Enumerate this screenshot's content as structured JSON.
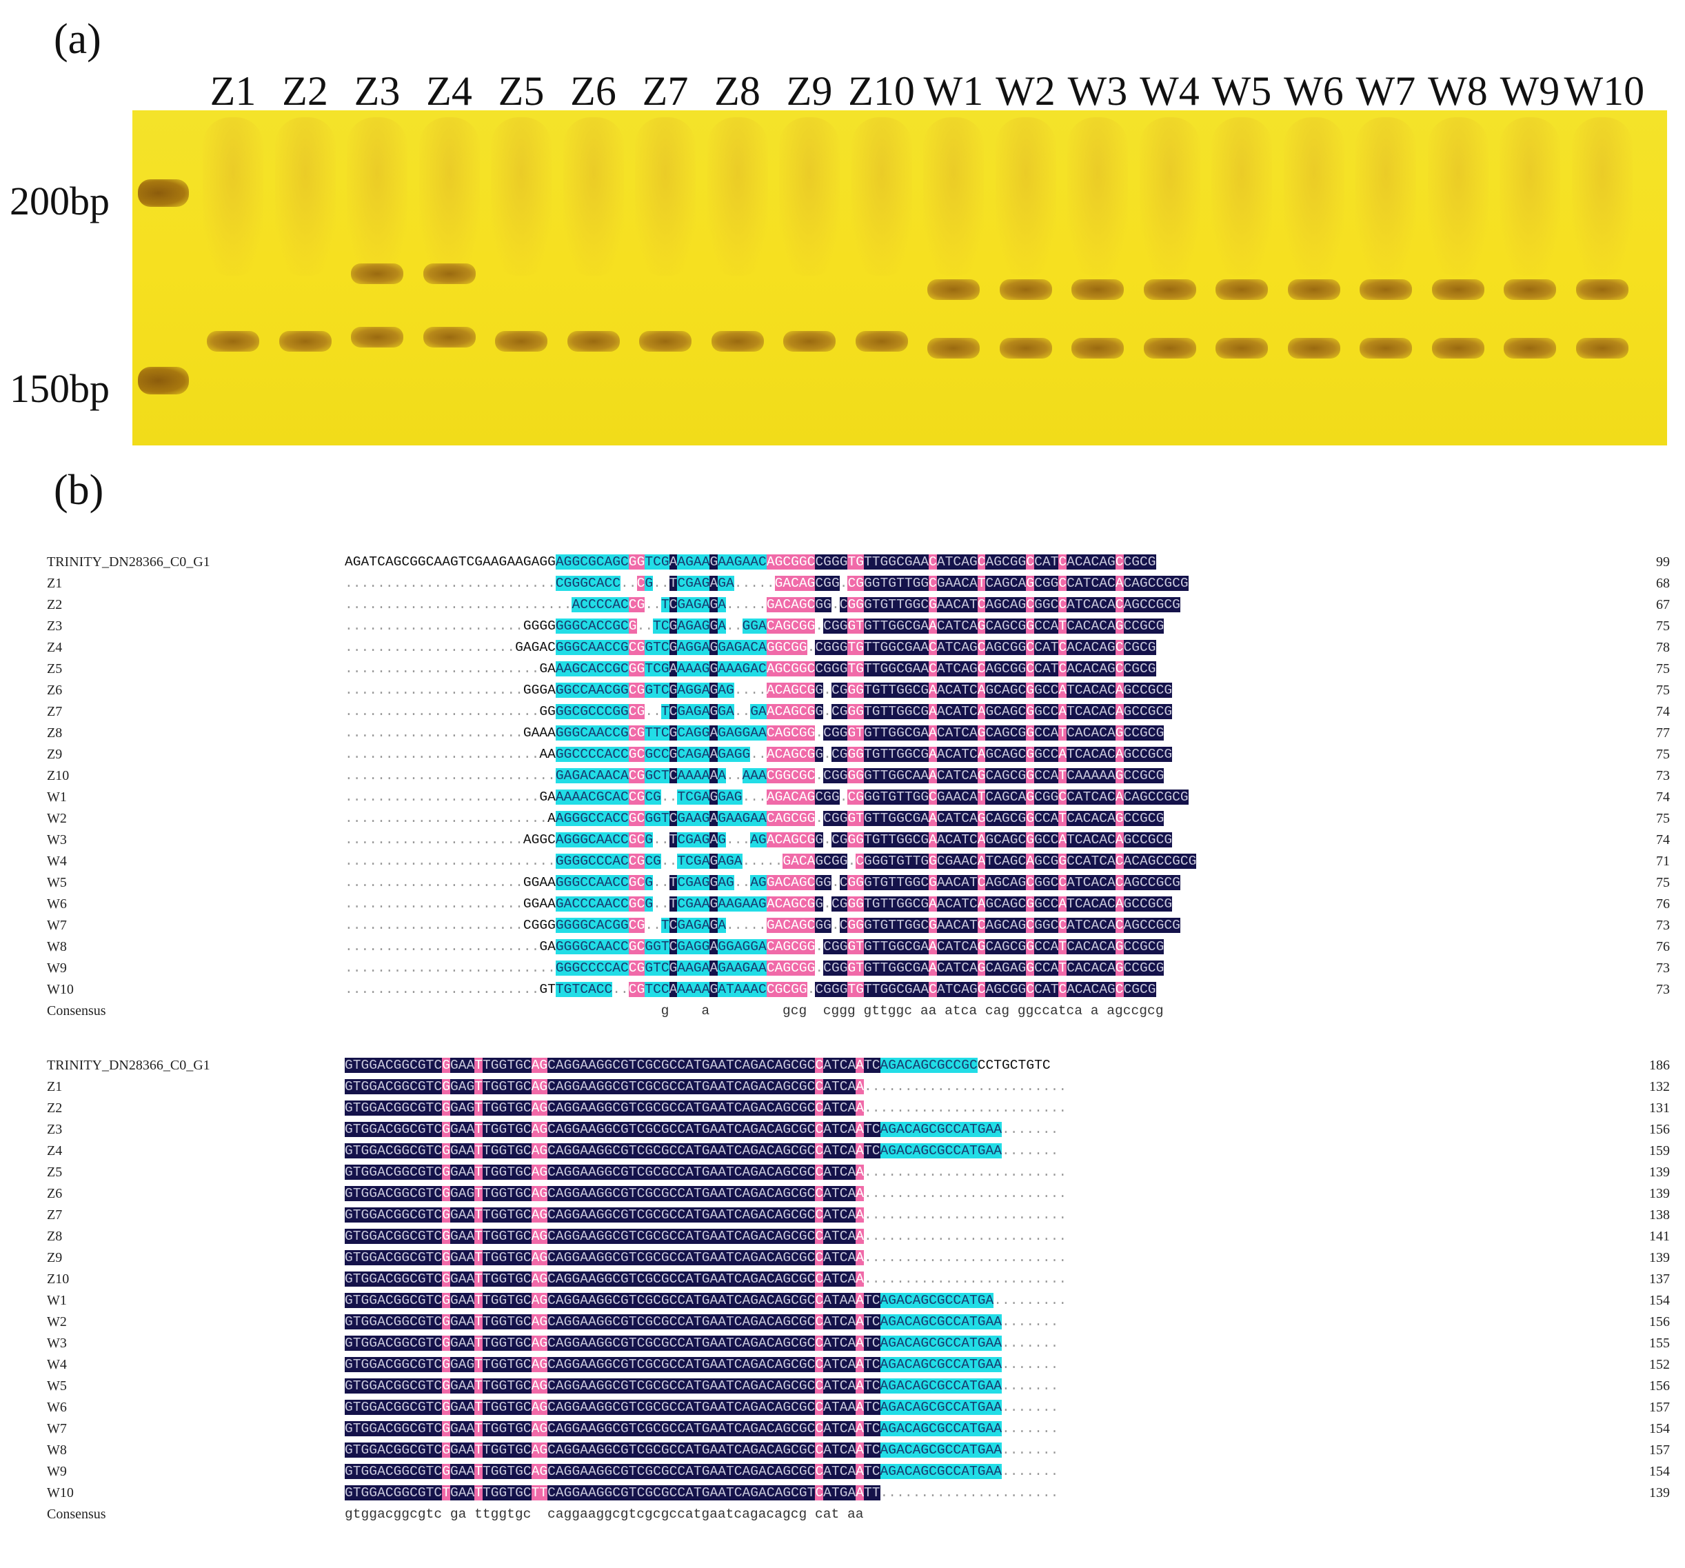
{
  "panel_a": {
    "label": "(a)",
    "lanes": [
      "Z1",
      "Z2",
      "Z3",
      "Z4",
      "Z5",
      "Z6",
      "Z7",
      "Z8",
      "Z9",
      "Z10",
      "W1",
      "W2",
      "W3",
      "W4",
      "W5",
      "W6",
      "W7",
      "W8",
      "W9",
      "W10"
    ],
    "ladder": [
      "200bp",
      "150bp"
    ],
    "upper_band_lanes": [
      "Z3",
      "Z4",
      "W1",
      "W2",
      "W3",
      "W4",
      "W5",
      "W6",
      "W7",
      "W8",
      "W9",
      "W10"
    ],
    "colors": {
      "gel": "#f5e125",
      "band": "#a07414",
      "ladder": "#8c5c0c"
    }
  },
  "panel_b": {
    "label": "(b)",
    "colors": {
      "identical": "#14124a",
      "conserved": "#f06aa8",
      "similar": "#22dde6"
    },
    "block1": {
      "rows": [
        {
          "name": "TRINITY_DN28366_C0_G1",
          "seq": "AGATCAGCGGCAAGTCGAAGAAGAGGAGGCGCAGCGGTCGAAGAAGAAGAACAGCGGCCGGGTGTTGGCGAACATCAGCAGCGGCCATCACACAGCCGCG",
          "num": "99"
        },
        {
          "name": "Z1",
          "seq": "..........................CGGGCACC..CG..TCGAGAGA.....GACAGCGG.CGGGTGTTGGCGAACATCAGCAGCGGCCATCACACAGCCGCG",
          "num": "68"
        },
        {
          "name": "Z2",
          "seq": "............................ACCCCACCG..TCGAGAGA.....GACAGCGG.CGGGTGTTGGCGAACATCAGCAGCGGCCATCACACAGCCGCG",
          "num": "67"
        },
        {
          "name": "Z3",
          "seq": "......................GGGGGGGCACCGCG..TCGAGAGGA..GGACAGCGG.CGGGTGTTGGCGAACATCAGCAGCGGCCATCACACAGCCGCG",
          "num": "75"
        },
        {
          "name": "Z4",
          "seq": ".....................GAGACGGGCAACCGCGGTCGAGGAGGAGACAGGCGG.CGGGTGTTGGCGAACATCAGCAGCGGCCATCACACAGCCGCG",
          "num": "78"
        },
        {
          "name": "Z5",
          "seq": "........................GAAAGCACCGCGGTCGAAAAGGAAAGACAGCGGCCGGGTGTTGGCGAACATCAGCAGCGGCCATCACACAGCCGCG",
          "num": "75"
        },
        {
          "name": "Z6",
          "seq": "......................GGGAGGCCAACGGCGGTCGAGGAGAG....ACAGCGG.CGGGTGTTGGCGAACATCAGCAGCGGCCATCACACAGCCGCG",
          "num": "75"
        },
        {
          "name": "Z7",
          "seq": "........................GGGGCGCCCGGCG..TCGAGAGGA..GAACAGCGG.CGGGTGTTGGCGAACATCAGCAGCGGCCATCACACAGCCGCG",
          "num": "74"
        },
        {
          "name": "Z8",
          "seq": "......................GAAAGGGCAACCGCGTTCGCAGGAGAGGAACAGCGG.CGGGTGTTGGCGAACATCAGCAGCGGCCATCACACAGCCGCG",
          "num": "77"
        },
        {
          "name": "Z9",
          "seq": "........................AAGGCCCCACCGCGCCGCAGAAGAGG..ACAGCGG.CGGGTGTTGGCGAACATCAGCAGCGGCCATCACACAGCCGCG",
          "num": "75"
        },
        {
          "name": "Z10",
          "seq": "..........................GAGACAACACGGCTCAAAAAA..AAACGGCGC.CGGGGGTTGGCAAACATCAGCAGCGGCCATCAAAAAGCCGCG",
          "num": "73"
        },
        {
          "name": "W1",
          "seq": "........................GAAAAACGCACCGCG..TCGAGGAG...AGACAGCGG.CGGGTGTTGGCGAACATCAGCAGCGGCCATCACACAGCCGCG",
          "num": "74"
        },
        {
          "name": "W2",
          "seq": ".........................AAGGGCCACCGCGGTCGAAGAGAAGAACAGCGG.CGGGTGTTGGCGAACATCAGCAGCGGCCATCACACAGCCGCG",
          "num": "75"
        },
        {
          "name": "W3",
          "seq": "......................AGGCAGGGCAACCGCG..TCGAGAG...AGACAGCGG.CGGGTGTTGGCGAACATCAGCAGCGGCCATCACACAGCCGCG",
          "num": "74"
        },
        {
          "name": "W4",
          "seq": "..........................GGGGCCCACCGCG..TCGAGAGA.....GACAGCGG.CGGGTGTTGGCGAACATCAGCAGCGGCCATCACACAGCCGCG",
          "num": "71"
        },
        {
          "name": "W5",
          "seq": "......................GGAAGGGCCAACCGCG..TCGAGGAG..AGGACAGCGG.CGGGTGTTGGCGAACATCAGCAGCGGCCATCACACAGCCGCG",
          "num": "75"
        },
        {
          "name": "W6",
          "seq": "......................GGAAGACCCAACCGCG..TCGAAGAAGAAGACAGCGG.CGGGTGTTGGCGAACATCAGCAGCGGCCATCACACAGCCGCG",
          "num": "76"
        },
        {
          "name": "W7",
          "seq": "......................CGGGGGGGCACGGCG..TCGAGAGA.....GACAGCGG.CGGGTGTTGGCGAACATCAGCAGCGGCCATCACACAGCCGCG",
          "num": "73"
        },
        {
          "name": "W8",
          "seq": "........................GAGGGGCAACCGCGGTCGAGGAGGAGGACAGCGG.CGGGTGTTGGCGAACATCAGCAGCGGCCATCACACAGCCGCG",
          "num": "76"
        },
        {
          "name": "W9",
          "seq": "..........................GGGCCCCACCGGTCGAAGAAGAAGAACAGCGG.CGGGTGTTGGCGAACATCAGCAGAGGCCATCACACAGCCGCG",
          "num": "73"
        },
        {
          "name": "W10",
          "seq": "........................GTTGTCACC..CGTCCAAAAAGATAAACCGCGG.CGGGTGTTGGCGAACATCAGCAGCGGCCATCACACAGCCGCG",
          "num": "73"
        }
      ],
      "consensus": {
        "name": "Consensus",
        "seq": "                                       g    a         gcg  cggg gttggc aa atca cag ggccatca a agccgcg"
      }
    },
    "block2": {
      "rows": [
        {
          "name": "TRINITY_DN28366_C0_G1",
          "seq": "GTGGACGGCGTCGGAATTGGTGCAGCAGGAAGGCGTCGCGCCATGAATCAGACAGCGCCATCAATCAGACAGCGCCGCCCTGCTGTC",
          "num": "186"
        },
        {
          "name": "Z1",
          "seq": "GTGGACGGCGTCGGAGTTGGTGCAGCAGGAAGGCGTCGCGCCATGAATCAGACAGCGCCATCAA.........................",
          "num": "132"
        },
        {
          "name": "Z2",
          "seq": "GTGGACGGCGTCGGAGTTGGTGCAGCAGGAAGGCGTCGCGCCATGAATCAGACAGCGCCATCAA.........................",
          "num": "131"
        },
        {
          "name": "Z3",
          "seq": "GTGGACGGCGTCGGAATTGGTGCAGCAGGAAGGCGTCGCGCCATGAATCAGACAGCGCCATCAATCAGACAGCGCCATGAA.......",
          "num": "156"
        },
        {
          "name": "Z4",
          "seq": "GTGGACGGCGTCGGAATTGGTGCAGCAGGAAGGCGTCGCGCCATGAATCAGACAGCGCCATCAATCAGACAGCGCCATGAA.......",
          "num": "159"
        },
        {
          "name": "Z5",
          "seq": "GTGGACGGCGTCGGAATTGGTGCAGCAGGAAGGCGTCGCGCCATGAATCAGACAGCGCCATCAA.........................",
          "num": "139"
        },
        {
          "name": "Z6",
          "seq": "GTGGACGGCGTCGGAGTTGGTGCAGCAGGAAGGCGTCGCGCCATGAATCAGACAGCGCCATCAA.........................",
          "num": "139"
        },
        {
          "name": "Z7",
          "seq": "GTGGACGGCGTCGGAATTGGTGCAGCAGGAAGGCGTCGCGCCATGAATCAGACAGCGCCATCAA.........................",
          "num": "138"
        },
        {
          "name": "Z8",
          "seq": "GTGGACGGCGTCGGAATTGGTGCAGCAGGAAGGCGTCGCGCCATGAATCAGACAGCGCCATCAA.........................",
          "num": "141"
        },
        {
          "name": "Z9",
          "seq": "GTGGACGGCGTCGGAATTGGTGCAGCAGGAAGGCGTCGCGCCATGAATCAGACAGCGCCATCAA.........................",
          "num": "139"
        },
        {
          "name": "Z10",
          "seq": "GTGGACGGCGTCGGAATTGGTGCAGCAGGAAGGCGTCGCGCCATGAATCAGACAGCGCCATCAA.........................",
          "num": "137"
        },
        {
          "name": "W1",
          "seq": "GTGGACGGCGTCGGAATTGGTGCAGCAGGAAGGCGTCGCGCCATGAATCAGACAGCGCCATAAATCAGACAGCGCCATGA.........",
          "num": "154"
        },
        {
          "name": "W2",
          "seq": "GTGGACGGCGTCGGAATTGGTGCAGCAGGAAGGCGTCGCGCCATGAATCAGACAGCGCCATCAATCAGACAGCGCCATGAA.......",
          "num": "156"
        },
        {
          "name": "W3",
          "seq": "GTGGACGGCGTCGGAATTGGTGCAGCAGGAAGGCGTCGCGCCATGAATCAGACAGCGCCATCAATCAGACAGCGCCATGAA.......",
          "num": "155"
        },
        {
          "name": "W4",
          "seq": "GTGGACGGCGTCGGAGTTGGTGCAGCAGGAAGGCGTCGCGCCATGAATCAGACAGCGCCATCAATCAGACAGCGCCATGAA.......",
          "num": "152"
        },
        {
          "name": "W5",
          "seq": "GTGGACGGCGTCGGAATTGGTGCAGCAGGAAGGCGTCGCGCCATGAATCAGACAGCGCCATCAATCAGACAGCGCCATGAA.......",
          "num": "156"
        },
        {
          "name": "W6",
          "seq": "GTGGACGGCGTCGGAATTGGTGCAGCAGGAAGGCGTCGCGCCATGAATCAGACAGCGCCATAAATCAGACAGCGCCATGAA.......",
          "num": "157"
        },
        {
          "name": "W7",
          "seq": "GTGGACGGCGTCGGAATTGGTGCAGCAGGAAGGCGTCGCGCCATGAATCAGACAGCGCCATCAATCAGACAGCGCCATGAA.......",
          "num": "154"
        },
        {
          "name": "W8",
          "seq": "GTGGACGGCGTCGGAATTGGTGCAGCAGGAAGGCGTCGCGCCATGAATCAGACAGCGCCATCAATCAGACAGCGCCATGAA.......",
          "num": "157"
        },
        {
          "name": "W9",
          "seq": "GTGGACGGCGTCGGAATTGGTGCAGCAGGAAGGCGTCGCGCCATGAATCAGACAGCGCCATCAATCAGACAGCGCCATGAA.......",
          "num": "154"
        },
        {
          "name": "W10",
          "seq": "GTGGACGGCGTCTGAATTGGTGCTTCAGGAAGGCGTCGCGCCATGAATCAGACAGCGTCATGAATT......................",
          "num": "139"
        }
      ],
      "consensus": {
        "name": "Consensus",
        "seq": "gtggacggcgtc ga ttggtgc  caggaaggcgtcgcgccatgaatcagacagcg cat aa"
      }
    }
  }
}
